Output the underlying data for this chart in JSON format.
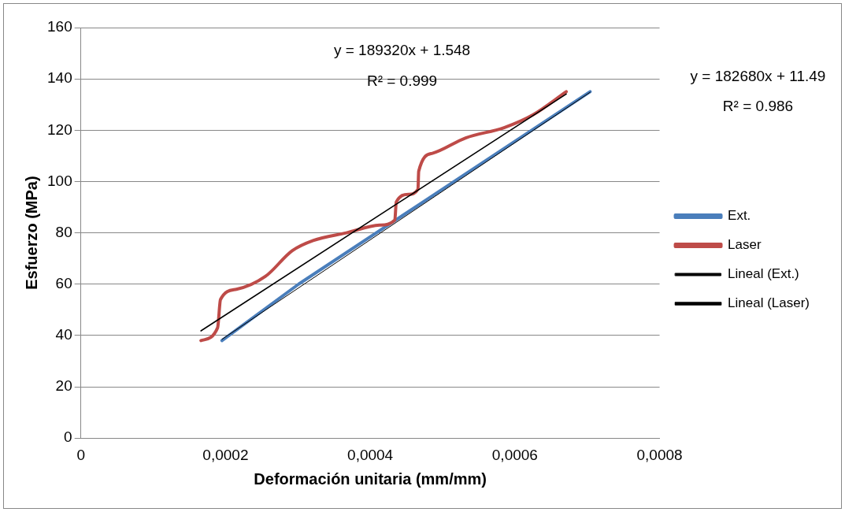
{
  "chart_data": {
    "type": "line",
    "xlabel": "Deformación unitaria (mm/mm)",
    "ylabel": "Esfuerzo (MPa)",
    "xlim": [
      0,
      0.0008
    ],
    "xticks": [
      {
        "value": 0,
        "label": "0"
      },
      {
        "value": 0.0002,
        "label": "0,0002"
      },
      {
        "value": 0.0004,
        "label": "0,0004"
      },
      {
        "value": 0.0006,
        "label": "0,0006"
      },
      {
        "value": 0.0008,
        "label": "0,0008"
      }
    ],
    "ylim": [
      0,
      160
    ],
    "yticks": [
      0,
      20,
      40,
      60,
      80,
      100,
      120,
      140,
      160
    ],
    "grid": "y",
    "legend": "right",
    "marker": "none",
    "series": [
      {
        "name": "Ext.",
        "color": "#4a7ebb",
        "x": [
          0.000195,
          0.000301,
          0.000516,
          0.000704
        ],
        "values": [
          38,
          60,
          100,
          135
        ]
      },
      {
        "name": "Laser",
        "color": "#be4b48",
        "x": [
          0.000166,
          0.000189,
          0.000193,
          0.000215,
          0.000255,
          0.000292,
          0.000321,
          0.000367,
          0.000413,
          0.000434,
          0.000436,
          0.000453,
          0.000466,
          0.000467,
          0.000486,
          0.000532,
          0.000585,
          0.000625,
          0.000671
        ],
        "values": [
          38,
          43,
          54,
          58,
          63,
          73,
          77,
          80,
          83,
          85,
          92,
          95,
          97,
          104,
          111,
          117,
          121,
          126,
          135
        ]
      },
      {
        "name": "Lineal (Ext.)",
        "color": "#000000",
        "x": [
          0.000195,
          0.000704
        ],
        "values": [
          38.5,
          134.8
        ]
      },
      {
        "name": "Lineal (Laser)",
        "color": "#000000",
        "x": [
          0.000166,
          0.000671
        ],
        "values": [
          41.8,
          134.1
        ]
      }
    ],
    "annotations": [
      "y = 189320x + 1.548",
      "R² = 0.999",
      "y = 182680x + 11.49",
      "R² = 0.986"
    ]
  }
}
